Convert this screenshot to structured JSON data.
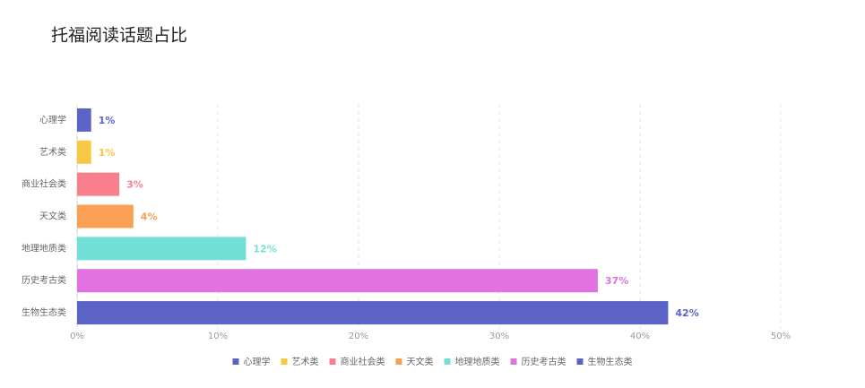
{
  "chart_data": {
    "type": "hbar",
    "title": "托福阅读话题占比",
    "categories": [
      "心理学",
      "艺术类",
      "商业社会类",
      "天文类",
      "地理地质类",
      "历史考古类",
      "生物生态类"
    ],
    "values": [
      1,
      1,
      3,
      4,
      12,
      37,
      42
    ],
    "value_labels": [
      "1%",
      "1%",
      "3%",
      "4%",
      "12%",
      "37%",
      "42%"
    ],
    "colors": [
      "#5b63c5",
      "#f7c843",
      "#fa7f8e",
      "#f9a054",
      "#72dfd6",
      "#df72de",
      "#5b63c5"
    ],
    "xlim": [
      0,
      50
    ],
    "xticks": [
      {
        "value": 0,
        "label": "0%"
      },
      {
        "value": 10,
        "label": "10%"
      },
      {
        "value": 20,
        "label": "20%"
      },
      {
        "value": 30,
        "label": "30%"
      },
      {
        "value": 40,
        "label": "40%"
      },
      {
        "value": 50,
        "label": "50%"
      }
    ],
    "grid": true,
    "legend": "bottom"
  }
}
